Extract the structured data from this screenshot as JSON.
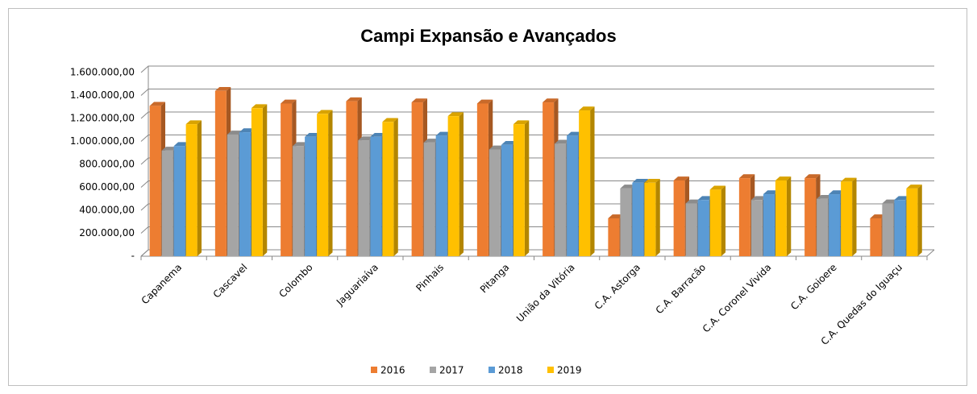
{
  "chart_data": {
    "type": "bar",
    "title": "Campi Expansão e Avançados",
    "categories": [
      "Capanema",
      "Cascavel",
      "Colombo",
      "Jaguariaíva",
      "Pinhais",
      "Pitanga",
      "União da Vitória",
      "C.A. Astorga",
      "C.A. Barracão",
      "C.A. Coronel Vivida",
      "C.A. Goioere",
      "C.A. Quedas do Iguaçu"
    ],
    "series": [
      {
        "name": "2016",
        "color": "#ed7d31",
        "values": [
          1310000,
          1440000,
          1330000,
          1350000,
          1340000,
          1330000,
          1340000,
          330000,
          660000,
          680000,
          680000,
          330000
        ]
      },
      {
        "name": "2017",
        "color": "#a5a5a5",
        "values": [
          920000,
          1060000,
          960000,
          1010000,
          990000,
          930000,
          980000,
          590000,
          460000,
          490000,
          500000,
          460000
        ]
      },
      {
        "name": "2018",
        "color": "#5b9bd5",
        "values": [
          960000,
          1080000,
          1040000,
          1040000,
          1050000,
          970000,
          1050000,
          640000,
          490000,
          540000,
          540000,
          490000
        ]
      },
      {
        "name": "2019",
        "color": "#ffc000",
        "values": [
          1150000,
          1290000,
          1240000,
          1170000,
          1220000,
          1150000,
          1270000,
          640000,
          580000,
          660000,
          650000,
          590000
        ]
      }
    ],
    "ylim": [
      0,
      1600000
    ],
    "yticks": [
      {
        "value": 0,
        "label": "-"
      },
      {
        "value": 200000,
        "label": "200.000,00"
      },
      {
        "value": 400000,
        "label": "400.000,00"
      },
      {
        "value": 600000,
        "label": "600.000,00"
      },
      {
        "value": 800000,
        "label": "800.000,00"
      },
      {
        "value": 1000000,
        "label": "1.000.000,00"
      },
      {
        "value": 1200000,
        "label": "1.200.000,00"
      },
      {
        "value": 1400000,
        "label": "1.400.000,00"
      },
      {
        "value": 1600000,
        "label": "1.600.000,00"
      }
    ],
    "grid": true,
    "legend": "bottom"
  }
}
